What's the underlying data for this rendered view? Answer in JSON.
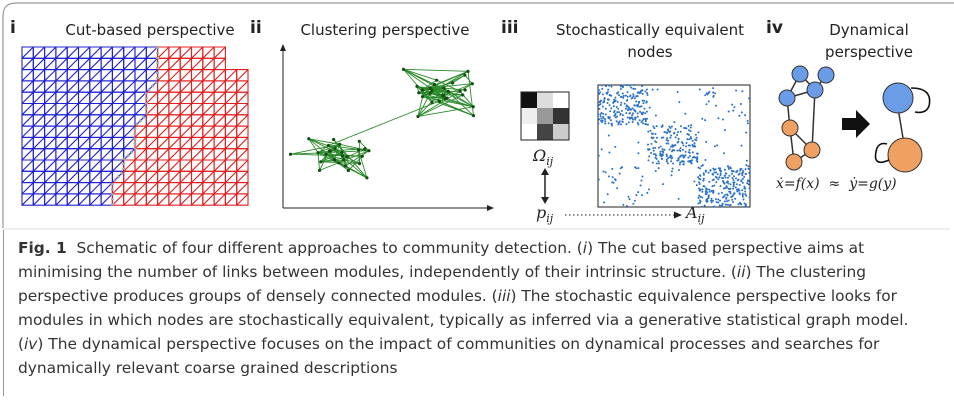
{
  "panels": [
    {
      "label": "i",
      "title": "Cut-based perspective"
    },
    {
      "label": "ii",
      "title": "Clustering perspective"
    },
    {
      "label": "iii",
      "title": "Stochastically equivalent nodes"
    },
    {
      "label": "iv",
      "title": "Dynamical perspective"
    }
  ],
  "math": {
    "omega": {
      "symbol": "Ω",
      "subscript": "ij"
    },
    "p": {
      "symbol": "p",
      "subscript": "ij"
    },
    "a": {
      "symbol": "A",
      "subscript": "ij"
    },
    "equation": {
      "left": "ẋ=f(x)",
      "approx": "≈",
      "right": "ẏ=g(y)"
    }
  },
  "caption": {
    "label": "Fig. 1",
    "segments": [
      "Schematic of four different approaches to community detection. (",
      "i",
      ") The cut based perspective aims at minimising the number of links between modules, independently of their intrinsic structure. (",
      "ii",
      ") The clustering perspective produces groups of densely connected modules. (",
      "iii",
      ") The stochastic equivalence perspective looks for modules in which nodes are stochastically equivalent, typically as inferred via a generative statistical graph model. (",
      "iv",
      ") The dynamical perspective focuses on the impact of communities on dynamical processes and searches for dynamically relevant coarse grained descriptions"
    ]
  }
}
